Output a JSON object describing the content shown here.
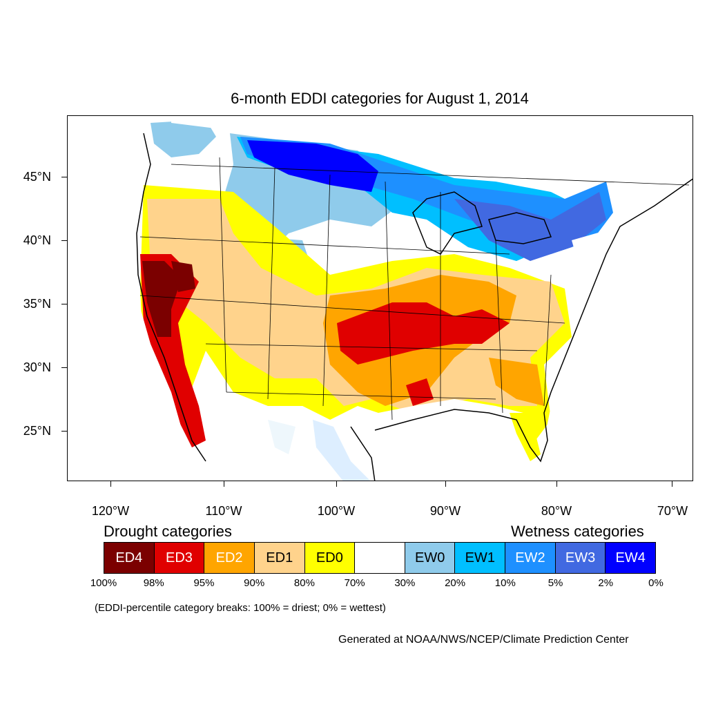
{
  "title": "6-month EDDI categories for August 1, 2014",
  "lat_labels": [
    "45°N",
    "40°N",
    "35°N",
    "30°N",
    "25°N"
  ],
  "lon_labels": [
    "120°W",
    "110°W",
    "100°W",
    "90°W",
    "80°W",
    "70°W"
  ],
  "legend": {
    "drought_heading": "Drought categories",
    "wetness_heading": "Wetness categories",
    "categories": [
      {
        "label": "ED4",
        "color": "#7b0000",
        "text_color": "#ffffff"
      },
      {
        "label": "ED3",
        "color": "#e00000",
        "text_color": "#ffffff"
      },
      {
        "label": "ED2",
        "color": "#ffa500",
        "text_color": "#ffffff"
      },
      {
        "label": "ED1",
        "color": "#ffd38c",
        "text_color": "#000000"
      },
      {
        "label": "ED0",
        "color": "#ffff00",
        "text_color": "#000000"
      },
      {
        "label": "",
        "color": "#ffffff",
        "text_color": "#000000"
      },
      {
        "label": "EW0",
        "color": "#8fcbeb",
        "text_color": "#000000"
      },
      {
        "label": "EW1",
        "color": "#00bfff",
        "text_color": "#000000"
      },
      {
        "label": "EW2",
        "color": "#1e90ff",
        "text_color": "#ffffff"
      },
      {
        "label": "EW3",
        "color": "#4169e1",
        "text_color": "#ffffff"
      },
      {
        "label": "EW4",
        "color": "#0000ff",
        "text_color": "#ffffff"
      }
    ],
    "percentiles": [
      "100%",
      "98%",
      "95%",
      "90%",
      "80%",
      "70%",
      "30%",
      "20%",
      "10%",
      "5%",
      "2%",
      "0%"
    ]
  },
  "note": "(EDDI-percentile category breaks: 100% = driest; 0% = wettest)",
  "credit": "Generated at NOAA/NWS/NCEP/Climate Prediction Center"
}
